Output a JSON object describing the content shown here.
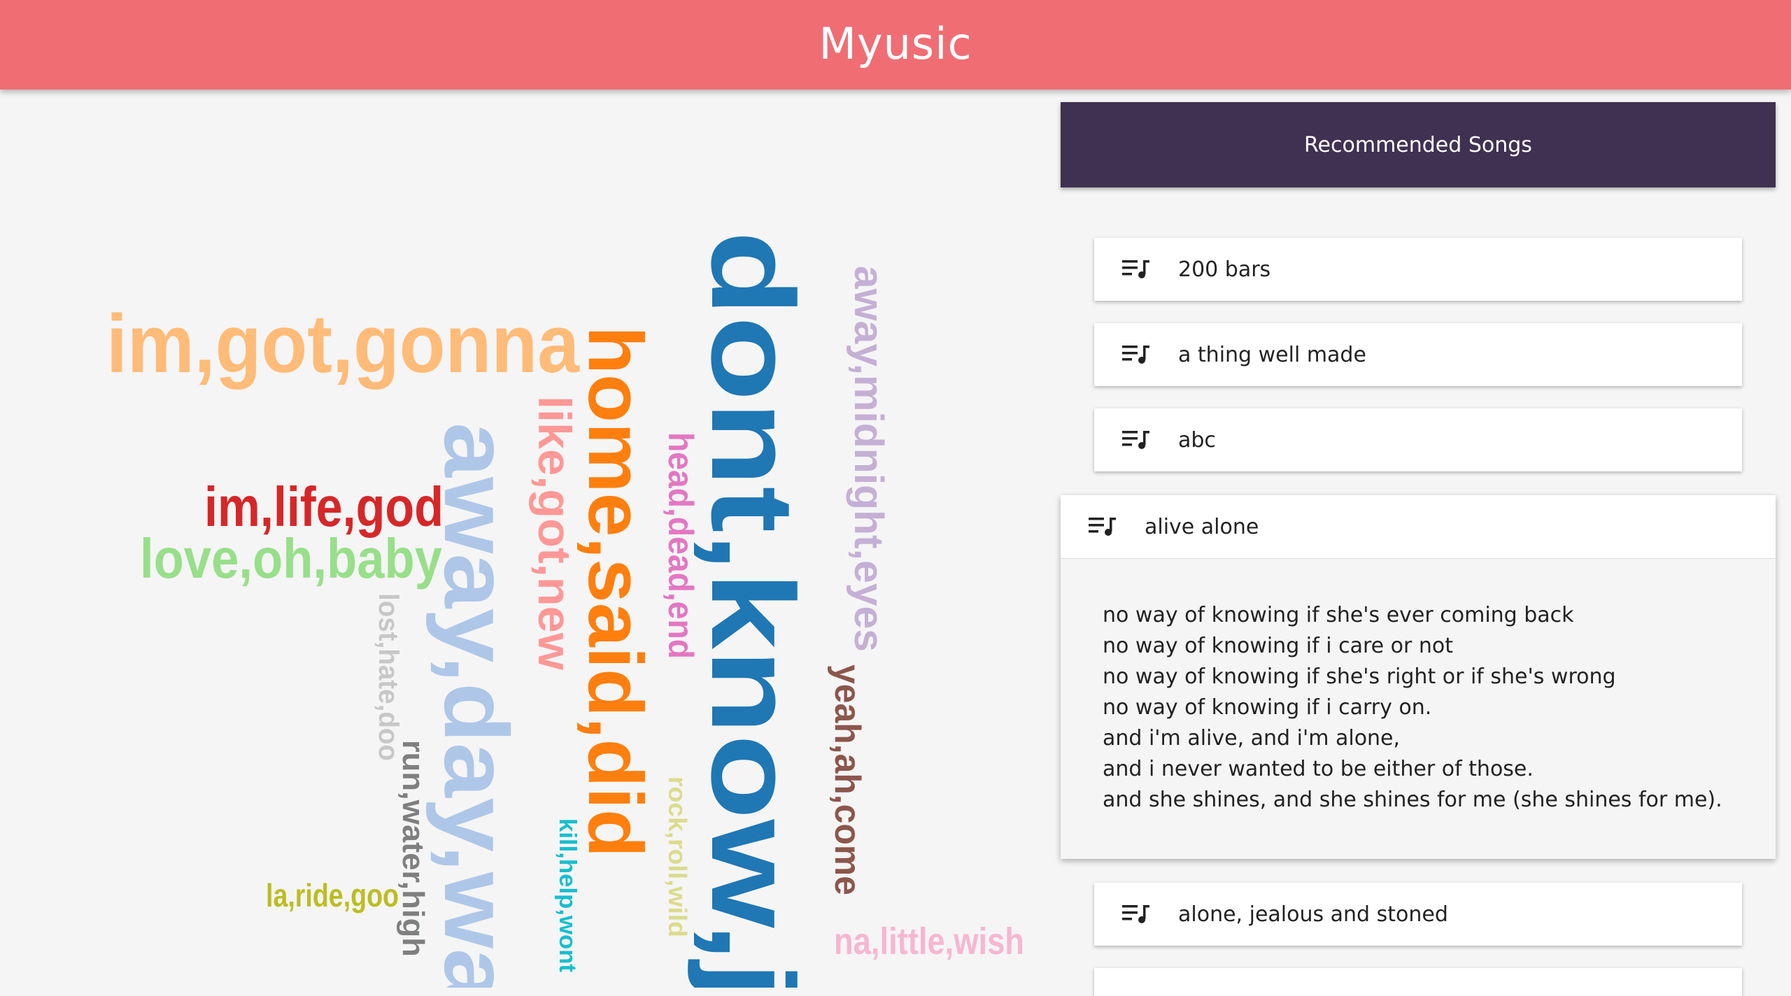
{
  "app": {
    "title": "Myusic"
  },
  "word_cloud": {
    "words": [
      {
        "text": "im,got,gonna",
        "color": "#ffbb78",
        "orientation": "horizontal"
      },
      {
        "text": "im,life,god",
        "color": "#d62728",
        "orientation": "horizontal"
      },
      {
        "text": "love,oh,baby",
        "color": "#98df8a",
        "orientation": "horizontal"
      },
      {
        "text": "la,ride,goo",
        "color": "#bcbd22",
        "orientation": "horizontal"
      },
      {
        "text": "na,little,wish",
        "color": "#f7b6d2",
        "orientation": "horizontal"
      },
      {
        "text": "dont,know,j",
        "color": "#1f77b4",
        "orientation": "vertical"
      },
      {
        "text": "home,said,did",
        "color": "#ff7f0e",
        "orientation": "vertical"
      },
      {
        "text": "away,day,wa",
        "color": "#aec7e8",
        "orientation": "vertical"
      },
      {
        "text": "like,got,new",
        "color": "#ff9896",
        "orientation": "vertical"
      },
      {
        "text": "head,dead,end",
        "color": "#e377c2",
        "orientation": "vertical"
      },
      {
        "text": "away,midnight,eyes",
        "color": "#c5b0d5",
        "orientation": "vertical"
      },
      {
        "text": "yeah,ah,come",
        "color": "#8c564b",
        "orientation": "vertical"
      },
      {
        "text": "lost,hate,doo",
        "color": "#c7c7c7",
        "orientation": "vertical"
      },
      {
        "text": "run,water,high",
        "color": "#7f7f7f",
        "orientation": "vertical"
      },
      {
        "text": "kill,help,wont",
        "color": "#17becf",
        "orientation": "vertical"
      },
      {
        "text": "rock,roll,wild",
        "color": "#dbdb8d",
        "orientation": "vertical"
      }
    ]
  },
  "recommended": {
    "header": "Recommended Songs",
    "songs": [
      {
        "title": "200 bars"
      },
      {
        "title": "a thing well made"
      },
      {
        "title": "abc"
      },
      {
        "title": "alive alone"
      },
      {
        "title": "alone, jealous and stoned"
      }
    ],
    "expanded_song": {
      "title": "alive alone",
      "lyrics": [
        "no way of knowing if she's ever coming back",
        "no way of knowing if i care or not",
        "no way of knowing if she's right or if she's wrong",
        "no way of knowing if i carry on.",
        "and i'm alive, and i'm alone,",
        "and i never wanted to be either of those.",
        "and she shines, and she shines for me (she shines for me)."
      ]
    }
  },
  "icons": {
    "song_icon": "playlist-music-icon"
  }
}
